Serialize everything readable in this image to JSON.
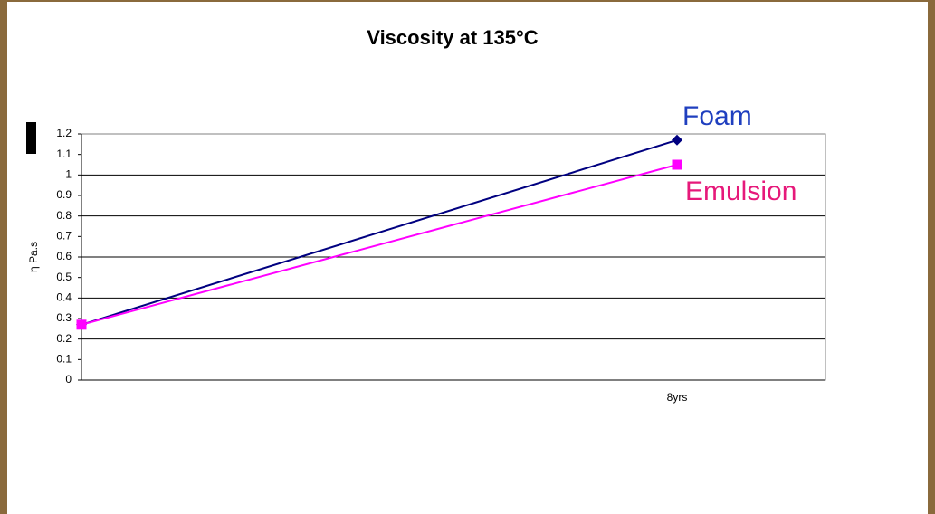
{
  "chart_data": {
    "type": "line",
    "title": "Viscosity at 135°C",
    "y_label": "η Pa.s",
    "categories": [
      null,
      "8yrs"
    ],
    "series": [
      {
        "name": "Foam",
        "color": "#000080",
        "label_color": "#1f3fbf",
        "marker": "diamond",
        "values": [
          0.27,
          1.17
        ]
      },
      {
        "name": "Emulsion",
        "color": "#ff00ff",
        "label_color": "#e6197a",
        "marker": "square",
        "values": [
          0.27,
          1.05
        ]
      }
    ],
    "ylim": [
      0,
      1.2
    ],
    "yticks": [
      0,
      0.1,
      0.2,
      0.3,
      0.4,
      0.5,
      0.6,
      0.7,
      0.8,
      0.9,
      1,
      1.1,
      1.2
    ],
    "grid": true
  }
}
